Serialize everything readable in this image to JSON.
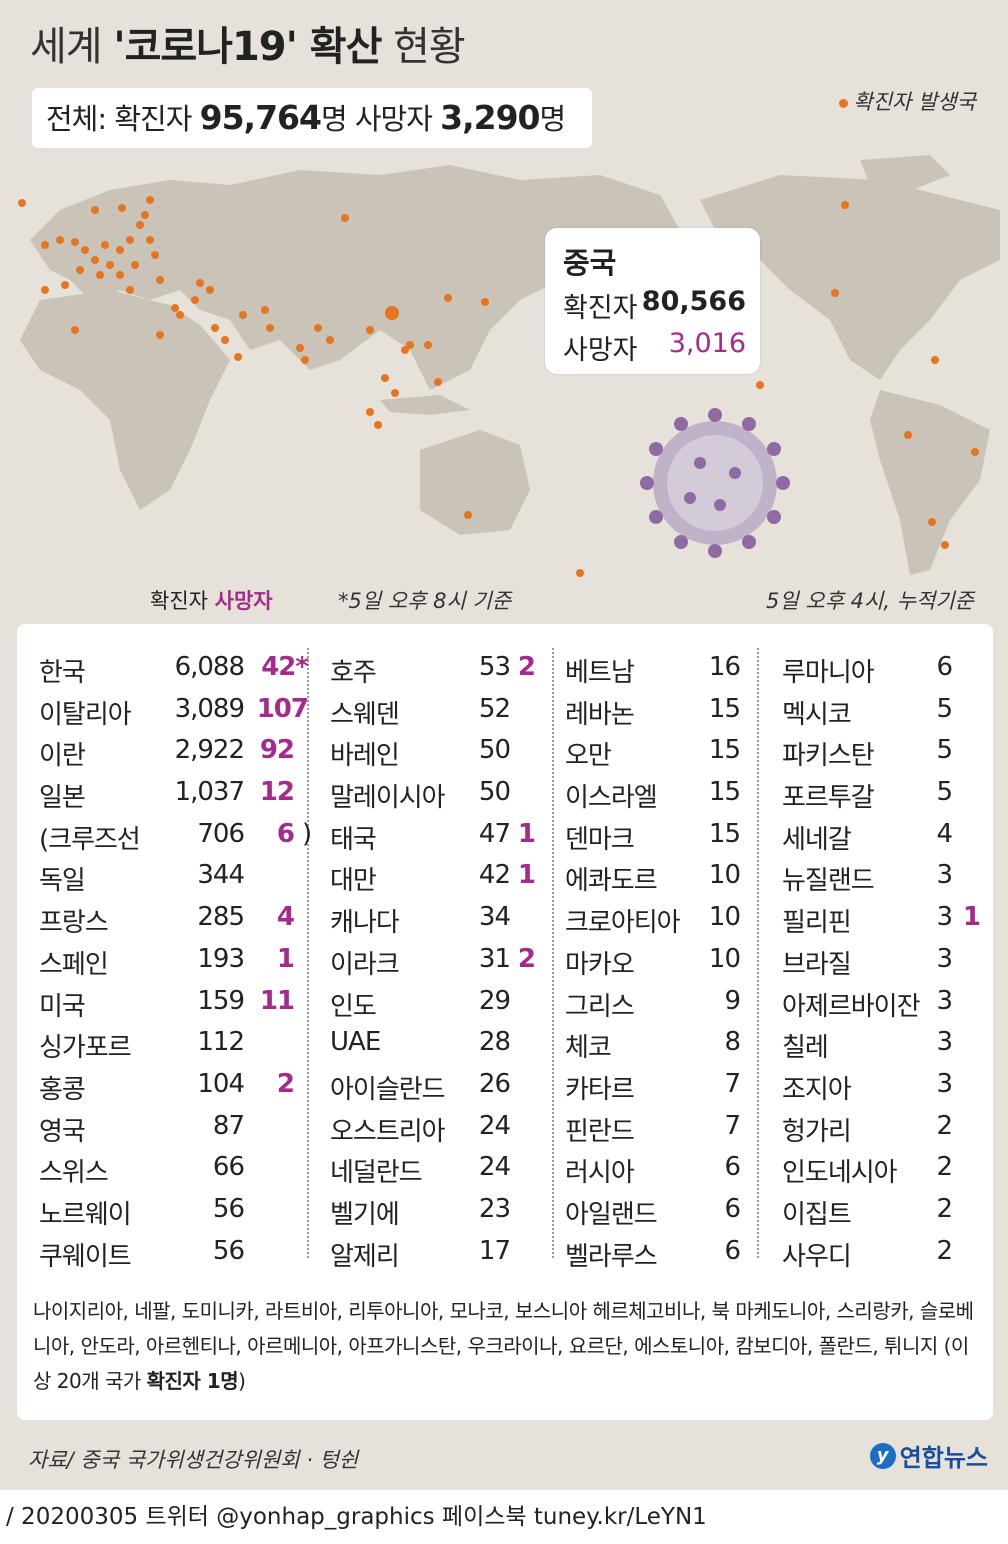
{
  "title": {
    "prefix": "세계 ",
    "highlight": "'코로나19' 확산",
    "suffix": " 현황"
  },
  "summary": {
    "label": "전체:",
    "confirmed_label": "확진자",
    "confirmed": "95,764",
    "unit1": "명",
    "deaths_label": "사망자",
    "deaths": "3,290",
    "unit2": "명"
  },
  "legend": {
    "dot_label": "확진자 발생국"
  },
  "china": {
    "name": "중국",
    "confirmed_label": "확진자",
    "confirmed": "80,566",
    "deaths_label": "사망자",
    "deaths": "3,016"
  },
  "column_labels": {
    "confirmed": "확진자",
    "deaths": "사망자"
  },
  "note_deaths": "*5일 오후 8시 기준",
  "note_cumulative": "5일 오후 4시, 누적기준",
  "columns": [
    [
      {
        "name": "한국",
        "confirmed": "6,088",
        "deaths": "42*"
      },
      {
        "name": "이탈리아",
        "confirmed": "3,089",
        "deaths": "107"
      },
      {
        "name": "이란",
        "confirmed": "2,922",
        "deaths": "92"
      },
      {
        "name": "일본",
        "confirmed": "1,037",
        "deaths": "12"
      },
      {
        "name": "(크루즈선",
        "confirmed": "706",
        "deaths": "6",
        "close": ")"
      },
      {
        "name": "독일",
        "confirmed": "344",
        "deaths": ""
      },
      {
        "name": "프랑스",
        "confirmed": "285",
        "deaths": "4"
      },
      {
        "name": "스페인",
        "confirmed": "193",
        "deaths": "1"
      },
      {
        "name": "미국",
        "confirmed": "159",
        "deaths": "11"
      },
      {
        "name": "싱가포르",
        "confirmed": "112",
        "deaths": ""
      },
      {
        "name": "홍콩",
        "confirmed": "104",
        "deaths": "2"
      },
      {
        "name": "영국",
        "confirmed": "87",
        "deaths": ""
      },
      {
        "name": "스위스",
        "confirmed": "66",
        "deaths": ""
      },
      {
        "name": "노르웨이",
        "confirmed": "56",
        "deaths": ""
      },
      {
        "name": "쿠웨이트",
        "confirmed": "56",
        "deaths": ""
      }
    ],
    [
      {
        "name": "호주",
        "confirmed": "53",
        "deaths": "2"
      },
      {
        "name": "스웨덴",
        "confirmed": "52",
        "deaths": ""
      },
      {
        "name": "바레인",
        "confirmed": "50",
        "deaths": ""
      },
      {
        "name": "말레이시아",
        "confirmed": "50",
        "deaths": ""
      },
      {
        "name": "태국",
        "confirmed": "47",
        "deaths": "1"
      },
      {
        "name": "대만",
        "confirmed": "42",
        "deaths": "1"
      },
      {
        "name": "캐나다",
        "confirmed": "34",
        "deaths": ""
      },
      {
        "name": "이라크",
        "confirmed": "31",
        "deaths": "2"
      },
      {
        "name": "인도",
        "confirmed": "29",
        "deaths": ""
      },
      {
        "name": "UAE",
        "confirmed": "28",
        "deaths": ""
      },
      {
        "name": "아이슬란드",
        "confirmed": "26",
        "deaths": ""
      },
      {
        "name": "오스트리아",
        "confirmed": "24",
        "deaths": ""
      },
      {
        "name": "네덜란드",
        "confirmed": "24",
        "deaths": ""
      },
      {
        "name": "벨기에",
        "confirmed": "23",
        "deaths": ""
      },
      {
        "name": "알제리",
        "confirmed": "17",
        "deaths": ""
      }
    ],
    [
      {
        "name": "베트남",
        "confirmed": "16",
        "deaths": ""
      },
      {
        "name": "레바논",
        "confirmed": "15",
        "deaths": ""
      },
      {
        "name": "오만",
        "confirmed": "15",
        "deaths": ""
      },
      {
        "name": "이스라엘",
        "confirmed": "15",
        "deaths": ""
      },
      {
        "name": "덴마크",
        "confirmed": "15",
        "deaths": ""
      },
      {
        "name": "에콰도르",
        "confirmed": "10",
        "deaths": ""
      },
      {
        "name": "크로아티아",
        "confirmed": "10",
        "deaths": ""
      },
      {
        "name": "마카오",
        "confirmed": "10",
        "deaths": ""
      },
      {
        "name": "그리스",
        "confirmed": "9",
        "deaths": ""
      },
      {
        "name": "체코",
        "confirmed": "8",
        "deaths": ""
      },
      {
        "name": "카타르",
        "confirmed": "7",
        "deaths": ""
      },
      {
        "name": "핀란드",
        "confirmed": "7",
        "deaths": ""
      },
      {
        "name": "러시아",
        "confirmed": "6",
        "deaths": ""
      },
      {
        "name": "아일랜드",
        "confirmed": "6",
        "deaths": ""
      },
      {
        "name": "벨라루스",
        "confirmed": "6",
        "deaths": ""
      }
    ],
    [
      {
        "name": "루마니아",
        "confirmed": "6",
        "deaths": ""
      },
      {
        "name": "멕시코",
        "confirmed": "5",
        "deaths": ""
      },
      {
        "name": "파키스탄",
        "confirmed": "5",
        "deaths": ""
      },
      {
        "name": "포르투갈",
        "confirmed": "5",
        "deaths": ""
      },
      {
        "name": "세네갈",
        "confirmed": "4",
        "deaths": ""
      },
      {
        "name": "뉴질랜드",
        "confirmed": "3",
        "deaths": ""
      },
      {
        "name": "필리핀",
        "confirmed": "3",
        "deaths": "1"
      },
      {
        "name": "브라질",
        "confirmed": "3",
        "deaths": ""
      },
      {
        "name": "아제르바이잔",
        "confirmed": "3",
        "deaths": ""
      },
      {
        "name": "칠레",
        "confirmed": "3",
        "deaths": ""
      },
      {
        "name": "조지아",
        "confirmed": "3",
        "deaths": ""
      },
      {
        "name": "헝가리",
        "confirmed": "2",
        "deaths": ""
      },
      {
        "name": "인도네시아",
        "confirmed": "2",
        "deaths": ""
      },
      {
        "name": "이집트",
        "confirmed": "2",
        "deaths": ""
      },
      {
        "name": "사우디",
        "confirmed": "2",
        "deaths": ""
      }
    ]
  ],
  "others": {
    "text": "나이지리아, 네팔, 도미니카, 라트비아, 리투아니아, 모나코, 보스니아 헤르체고비나, 북 마케도니아, 스리랑카, 슬로베니아, 안도라, 아르헨티나, 아르메니아, 아프가니스탄, 우크라이나, 요르단, 에스토니아, 캄보디아, 폴란드, 튀니지 (이상 20개 국가 ",
    "bold": "확진자 1명",
    "end": ")"
  },
  "source": "자료/ 중국 국가위생건강위원회 · 텅쉰",
  "logo": "연합뉴스",
  "footer": "/ 20200305  트위터 @yonhap_graphics  페이스북 tuney.kr/LeYN1",
  "colors": {
    "death": "#a52a8c",
    "dot": "#e57520",
    "land": "#c9c3b8"
  }
}
